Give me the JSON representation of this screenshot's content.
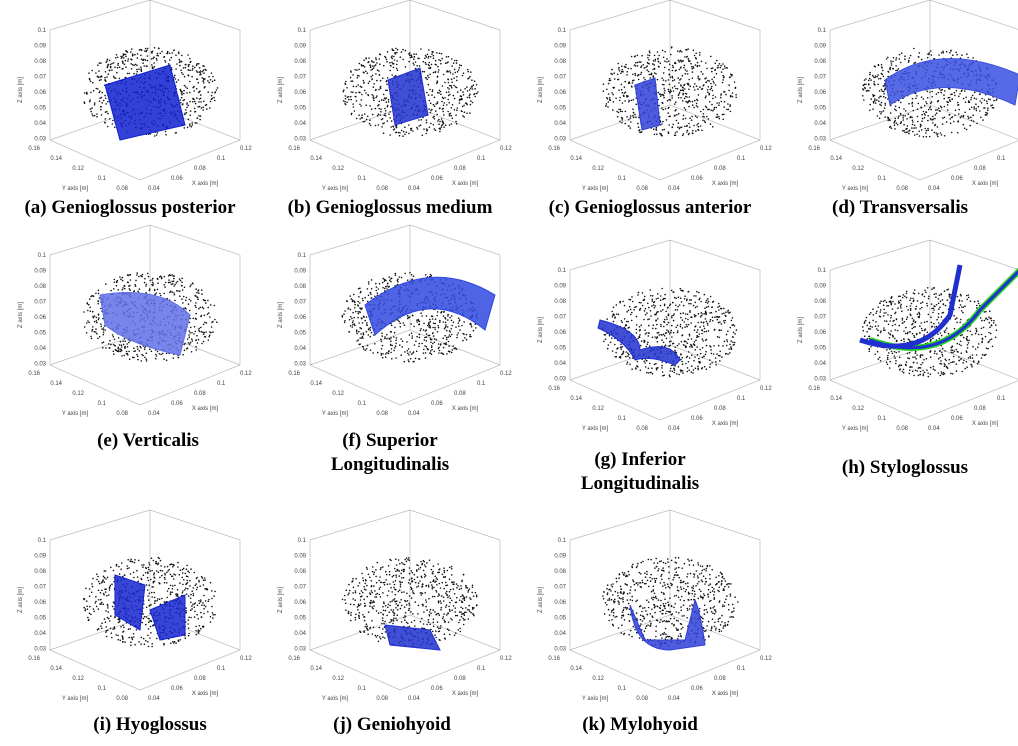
{
  "axes": {
    "z_label": "Z axis [m]",
    "y_label": "Y axis [m]",
    "x_label": "X axis [m]",
    "z_ticks": [
      "0.1",
      "0.09",
      "0.08",
      "0.07",
      "0.06",
      "0.05",
      "0.04",
      "0.03"
    ],
    "y_ticks": [
      "0.16",
      "0.14",
      "0.12",
      "0.1",
      "0.08"
    ],
    "x_ticks": [
      "0.04",
      "0.06",
      "0.08",
      "0.1",
      "0.12"
    ]
  },
  "panels": [
    {
      "caption": [
        "(a) Genioglossus posterior"
      ]
    },
    {
      "caption": [
        "(b) Genioglossus medium"
      ]
    },
    {
      "caption": [
        "(c) Genioglossus anterior"
      ]
    },
    {
      "caption": [
        "(d) Transversalis"
      ]
    },
    {
      "caption": [
        "(e) Verticalis"
      ]
    },
    {
      "caption": [
        "(f) Superior",
        "Longitudinalis"
      ]
    },
    {
      "caption": [
        "(g) Inferior",
        "Longitudinalis"
      ]
    },
    {
      "caption": [
        "(h) Styloglossus"
      ]
    },
    {
      "caption": [
        "(i) Hyoglossus"
      ]
    },
    {
      "caption": [
        "(j) Geniohyoid"
      ]
    },
    {
      "caption": [
        "(k) Mylohyoid"
      ]
    }
  ]
}
